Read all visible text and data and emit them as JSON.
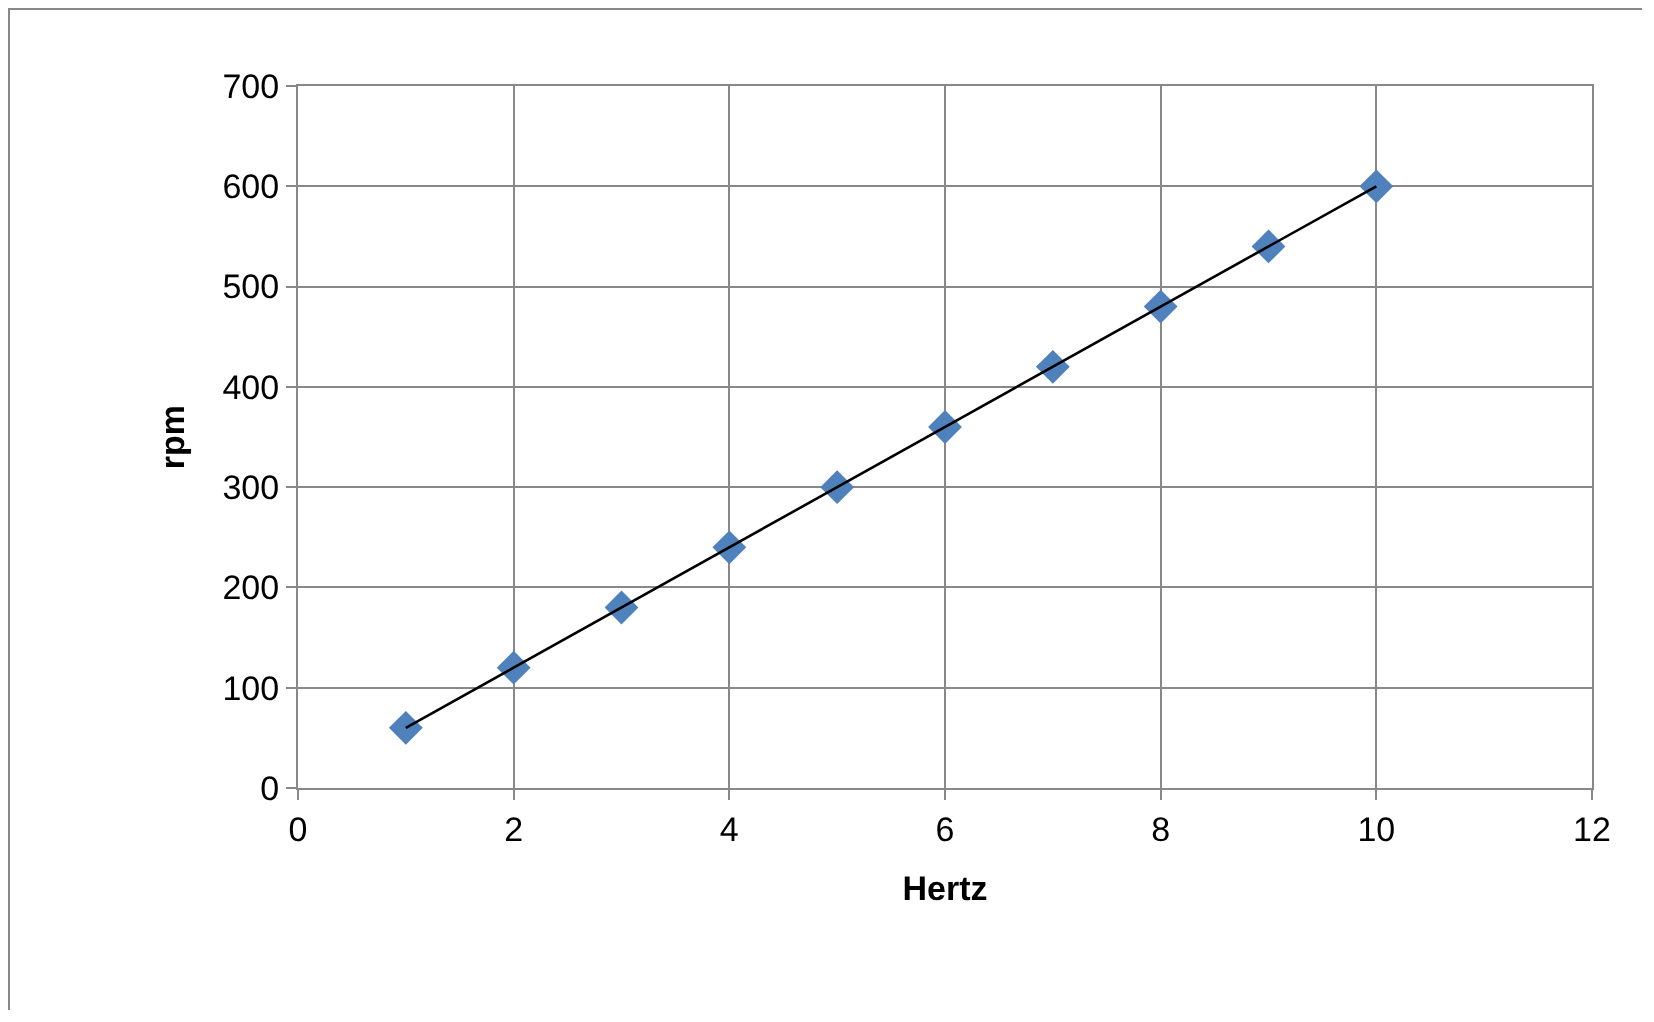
{
  "chart_data": {
    "type": "scatter",
    "xlabel": "Hertz",
    "ylabel": "rpm",
    "x": [
      1,
      2,
      3,
      4,
      5,
      6,
      7,
      8,
      9,
      10
    ],
    "series": [
      {
        "color": "#4f81bd",
        "values": [
          60,
          120,
          180,
          240,
          300,
          360,
          420,
          480,
          540,
          600
        ]
      },
      {
        "type": "line",
        "color": "#000000",
        "x": [
          1,
          10
        ],
        "values": [
          60,
          600
        ],
        "marker": "none"
      }
    ],
    "marker": "diamond",
    "xlim": [
      0,
      12
    ],
    "xticks": [
      0,
      2,
      4,
      6,
      8,
      10,
      12
    ],
    "ylim": [
      0,
      700
    ],
    "yticks": [
      0,
      100,
      200,
      300,
      400,
      500,
      600,
      700
    ],
    "grid": true
  }
}
